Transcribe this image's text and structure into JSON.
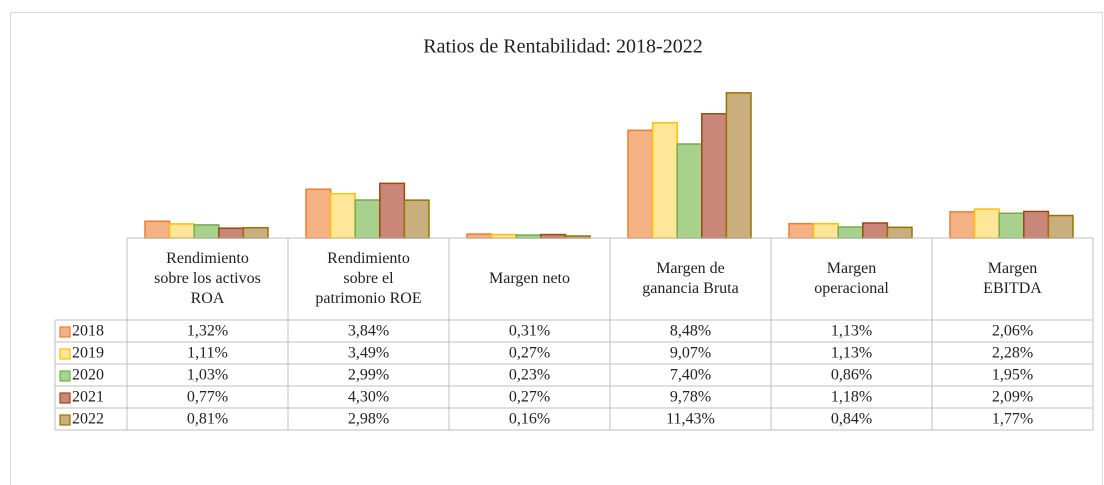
{
  "chart_data": {
    "type": "bar",
    "title": "Ratios de Rentabilidad: 2018-2022",
    "categories": [
      "Rendimiento\nsobre los activos\nROA",
      "Rendimiento\nsobre el\npatrimonio ROE",
      "Margen neto",
      "Margen de\nganancia Bruta",
      "Margen\noperacional",
      "Margen\nEBITDA"
    ],
    "series": [
      {
        "name": "2018",
        "color": "#F4B183",
        "border": "#ED7D31",
        "values": [
          1.32,
          3.84,
          0.31,
          8.48,
          1.13,
          2.06
        ],
        "value_labels": [
          "1,32%",
          "3,84%",
          "0,31%",
          "8,48%",
          "1,13%",
          "2,06%"
        ]
      },
      {
        "name": "2019",
        "color": "#FFE699",
        "border": "#FFC000",
        "values": [
          1.11,
          3.49,
          0.27,
          9.07,
          1.13,
          2.28
        ],
        "value_labels": [
          "1,11%",
          "3,49%",
          "0,27%",
          "9,07%",
          "1,13%",
          "2,28%"
        ]
      },
      {
        "name": "2020",
        "color": "#A9D18E",
        "border": "#70AD47",
        "values": [
          1.03,
          2.99,
          0.23,
          7.4,
          0.86,
          1.95
        ],
        "value_labels": [
          "1,03%",
          "2,99%",
          "0,23%",
          "7,40%",
          "0,86%",
          "1,95%"
        ]
      },
      {
        "name": "2021",
        "color": "#C9877A",
        "border": "#9E480E",
        "values": [
          0.77,
          4.3,
          0.27,
          9.78,
          1.18,
          2.09
        ],
        "value_labels": [
          "0,77%",
          "4,30%",
          "0,27%",
          "9,78%",
          "1,18%",
          "2,09%"
        ]
      },
      {
        "name": "2022",
        "color": "#C9AE7E",
        "border": "#997300",
        "values": [
          0.81,
          2.98,
          0.16,
          11.43,
          0.84,
          1.77
        ],
        "value_labels": [
          "0,81%",
          "2,98%",
          "0,16%",
          "11,43%",
          "0,84%",
          "1,77%"
        ]
      }
    ]
  }
}
